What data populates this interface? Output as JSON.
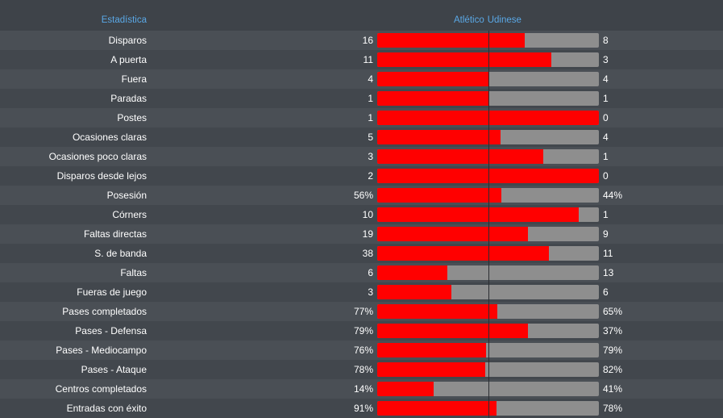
{
  "header": {
    "stat_label": "Estadística",
    "home_team": "Atlético",
    "away_team": "Udinese"
  },
  "colors": {
    "home_bar": "#ff0000",
    "away_bar": "#8e8e8e",
    "header_text": "#5aa8e6"
  },
  "stats": [
    {
      "label": "Disparos",
      "home": "16",
      "away": "8",
      "home_share": 0.667
    },
    {
      "label": "A puerta",
      "home": "11",
      "away": "3",
      "home_share": 0.786
    },
    {
      "label": "Fuera",
      "home": "4",
      "away": "4",
      "home_share": 0.5
    },
    {
      "label": "Paradas",
      "home": "1",
      "away": "1",
      "home_share": 0.5
    },
    {
      "label": "Postes",
      "home": "1",
      "away": "0",
      "home_share": 1.0
    },
    {
      "label": "Ocasiones claras",
      "home": "5",
      "away": "4",
      "home_share": 0.556
    },
    {
      "label": "Ocasiones poco claras",
      "home": "3",
      "away": "1",
      "home_share": 0.75
    },
    {
      "label": "Disparos desde lejos",
      "home": "2",
      "away": "0",
      "home_share": 1.0
    },
    {
      "label": "Posesión",
      "home": "56%",
      "away": "44%",
      "home_share": 0.56
    },
    {
      "label": "Córners",
      "home": "10",
      "away": "1",
      "home_share": 0.909
    },
    {
      "label": "Faltas directas",
      "home": "19",
      "away": "9",
      "home_share": 0.679
    },
    {
      "label": "S. de banda",
      "home": "38",
      "away": "11",
      "home_share": 0.776
    },
    {
      "label": "Faltas",
      "home": "6",
      "away": "13",
      "home_share": 0.316
    },
    {
      "label": "Fueras de juego",
      "home": "3",
      "away": "6",
      "home_share": 0.333
    },
    {
      "label": "Pases completados",
      "home": "77%",
      "away": "65%",
      "home_share": 0.542
    },
    {
      "label": "Pases - Defensa",
      "home": "79%",
      "away": "37%",
      "home_share": 0.681
    },
    {
      "label": "Pases - Mediocampo",
      "home": "76%",
      "away": "79%",
      "home_share": 0.49
    },
    {
      "label": "Pases - Ataque",
      "home": "78%",
      "away": "82%",
      "home_share": 0.4875
    },
    {
      "label": "Centros completados",
      "home": "14%",
      "away": "41%",
      "home_share": 0.255
    },
    {
      "label": "Entradas con éxito",
      "home": "91%",
      "away": "78%",
      "home_share": 0.538
    }
  ]
}
